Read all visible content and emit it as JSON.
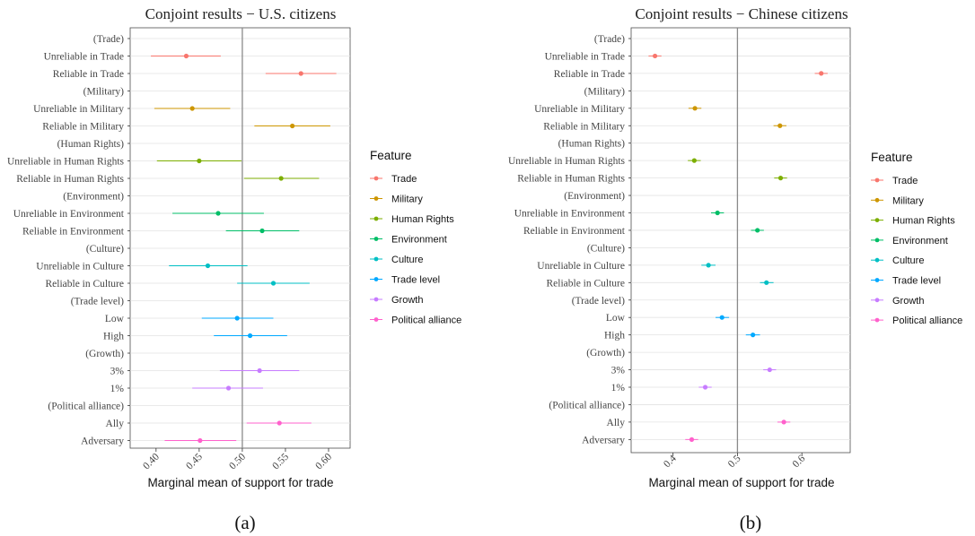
{
  "chart_data": [
    {
      "type": "scatter",
      "subtype": "point-range (forest plot)",
      "title": "Conjoint results − U.S. citizens",
      "xlabel": "Marginal mean of support for trade",
      "ylabel": "",
      "xlim": [
        0.37,
        0.625
      ],
      "xticks": [
        0.4,
        0.45,
        0.5,
        0.55,
        0.6
      ],
      "xtick_labels": [
        "0.40",
        "0.45",
        "0.50",
        "0.55",
        "0.60"
      ],
      "reference_line": 0.5,
      "grid": true,
      "legend": {
        "title": "Feature",
        "position": "right"
      },
      "panel_label": "(a)",
      "rows": [
        {
          "label": "(Trade)",
          "feature": "Trade",
          "header": true
        },
        {
          "label": "Unreliable in Trade",
          "feature": "Trade",
          "mean": 0.435,
          "lo": 0.394,
          "hi": 0.475
        },
        {
          "label": "Reliable in Trade",
          "feature": "Trade",
          "mean": 0.568,
          "lo": 0.527,
          "hi": 0.609
        },
        {
          "label": "(Military)",
          "feature": "Military",
          "header": true
        },
        {
          "label": "Unreliable in Military",
          "feature": "Military",
          "mean": 0.442,
          "lo": 0.398,
          "hi": 0.486
        },
        {
          "label": "Reliable in Military",
          "feature": "Military",
          "mean": 0.558,
          "lo": 0.514,
          "hi": 0.602
        },
        {
          "label": "(Human Rights)",
          "feature": "Human Rights",
          "header": true
        },
        {
          "label": "Unreliable in Human Rights",
          "feature": "Human Rights",
          "mean": 0.45,
          "lo": 0.401,
          "hi": 0.499
        },
        {
          "label": "Reliable in Human Rights",
          "feature": "Human Rights",
          "mean": 0.545,
          "lo": 0.502,
          "hi": 0.589
        },
        {
          "label": "(Environment)",
          "feature": "Environment",
          "header": true
        },
        {
          "label": "Unreliable in Environment",
          "feature": "Environment",
          "mean": 0.472,
          "lo": 0.419,
          "hi": 0.525
        },
        {
          "label": "Reliable in Environment",
          "feature": "Environment",
          "mean": 0.523,
          "lo": 0.481,
          "hi": 0.566
        },
        {
          "label": "(Culture)",
          "feature": "Culture",
          "header": true
        },
        {
          "label": "Unreliable in Culture",
          "feature": "Culture",
          "mean": 0.46,
          "lo": 0.415,
          "hi": 0.506
        },
        {
          "label": "Reliable in Culture",
          "feature": "Culture",
          "mean": 0.536,
          "lo": 0.494,
          "hi": 0.578
        },
        {
          "label": "(Trade level)",
          "feature": "Trade level",
          "header": true
        },
        {
          "label": "Low",
          "feature": "Trade level",
          "mean": 0.494,
          "lo": 0.453,
          "hi": 0.536
        },
        {
          "label": "High",
          "feature": "Trade level",
          "mean": 0.509,
          "lo": 0.467,
          "hi": 0.552
        },
        {
          "label": "(Growth)",
          "feature": "Growth",
          "header": true
        },
        {
          "label": "3%",
          "feature": "Growth",
          "mean": 0.52,
          "lo": 0.474,
          "hi": 0.566
        },
        {
          "label": "1%",
          "feature": "Growth",
          "mean": 0.484,
          "lo": 0.442,
          "hi": 0.524
        },
        {
          "label": "(Political alliance)",
          "feature": "Political alliance",
          "header": true
        },
        {
          "label": "Ally",
          "feature": "Political alliance",
          "mean": 0.543,
          "lo": 0.505,
          "hi": 0.58
        },
        {
          "label": "Adversary",
          "feature": "Political alliance",
          "mean": 0.451,
          "lo": 0.41,
          "hi": 0.493
        }
      ]
    },
    {
      "type": "scatter",
      "subtype": "point-range (forest plot)",
      "title": "Conjoint results − Chinese citizens",
      "xlabel": "Marginal mean of support for trade",
      "ylabel": "",
      "xlim": [
        0.335,
        0.675
      ],
      "xticks": [
        0.4,
        0.5,
        0.6
      ],
      "xtick_labels": [
        "0.4",
        "0.5",
        "0.6"
      ],
      "reference_line": 0.5,
      "grid": true,
      "legend": {
        "title": "Feature",
        "position": "right"
      },
      "panel_label": "(b)",
      "rows": [
        {
          "label": "(Trade)",
          "feature": "Trade",
          "header": true
        },
        {
          "label": "Unreliable in Trade",
          "feature": "Trade",
          "mean": 0.372,
          "lo": 0.362,
          "hi": 0.382
        },
        {
          "label": "Reliable in Trade",
          "feature": "Trade",
          "mean": 0.63,
          "lo": 0.62,
          "hi": 0.64
        },
        {
          "label": "(Military)",
          "feature": "Military",
          "header": true
        },
        {
          "label": "Unreliable in Military",
          "feature": "Military",
          "mean": 0.434,
          "lo": 0.424,
          "hi": 0.444
        },
        {
          "label": "Reliable in Military",
          "feature": "Military",
          "mean": 0.566,
          "lo": 0.556,
          "hi": 0.576
        },
        {
          "label": "(Human Rights)",
          "feature": "Human Rights",
          "header": true
        },
        {
          "label": "Unreliable in Human Rights",
          "feature": "Human Rights",
          "mean": 0.433,
          "lo": 0.423,
          "hi": 0.443
        },
        {
          "label": "Reliable in Human Rights",
          "feature": "Human Rights",
          "mean": 0.567,
          "lo": 0.557,
          "hi": 0.577
        },
        {
          "label": "(Environment)",
          "feature": "Environment",
          "header": true
        },
        {
          "label": "Unreliable in Environment",
          "feature": "Environment",
          "mean": 0.469,
          "lo": 0.459,
          "hi": 0.479
        },
        {
          "label": "Reliable in Environment",
          "feature": "Environment",
          "mean": 0.531,
          "lo": 0.521,
          "hi": 0.541
        },
        {
          "label": "(Culture)",
          "feature": "Culture",
          "header": true
        },
        {
          "label": "Unreliable in Culture",
          "feature": "Culture",
          "mean": 0.455,
          "lo": 0.444,
          "hi": 0.466
        },
        {
          "label": "Reliable in Culture",
          "feature": "Culture",
          "mean": 0.545,
          "lo": 0.535,
          "hi": 0.556
        },
        {
          "label": "(Trade level)",
          "feature": "Trade level",
          "header": true
        },
        {
          "label": "Low",
          "feature": "Trade level",
          "mean": 0.476,
          "lo": 0.466,
          "hi": 0.487
        },
        {
          "label": "High",
          "feature": "Trade level",
          "mean": 0.524,
          "lo": 0.513,
          "hi": 0.535
        },
        {
          "label": "(Growth)",
          "feature": "Growth",
          "header": true
        },
        {
          "label": "3%",
          "feature": "Growth",
          "mean": 0.55,
          "lo": 0.54,
          "hi": 0.56
        },
        {
          "label": "1%",
          "feature": "Growth",
          "mean": 0.45,
          "lo": 0.44,
          "hi": 0.46
        },
        {
          "label": "(Political alliance)",
          "feature": "Political alliance",
          "header": true
        },
        {
          "label": "Ally",
          "feature": "Political alliance",
          "mean": 0.572,
          "lo": 0.562,
          "hi": 0.582
        },
        {
          "label": "Adversary",
          "feature": "Political alliance",
          "mean": 0.429,
          "lo": 0.419,
          "hi": 0.439
        }
      ]
    }
  ],
  "features": [
    {
      "name": "Trade",
      "color": "#F8766D"
    },
    {
      "name": "Military",
      "color": "#CD9600"
    },
    {
      "name": "Human Rights",
      "color": "#7CAE00"
    },
    {
      "name": "Environment",
      "color": "#00BE67"
    },
    {
      "name": "Culture",
      "color": "#00BFC4"
    },
    {
      "name": "Trade level",
      "color": "#00A9FF"
    },
    {
      "name": "Growth",
      "color": "#C77CFF"
    },
    {
      "name": "Political alliance",
      "color": "#FF61CC"
    }
  ]
}
